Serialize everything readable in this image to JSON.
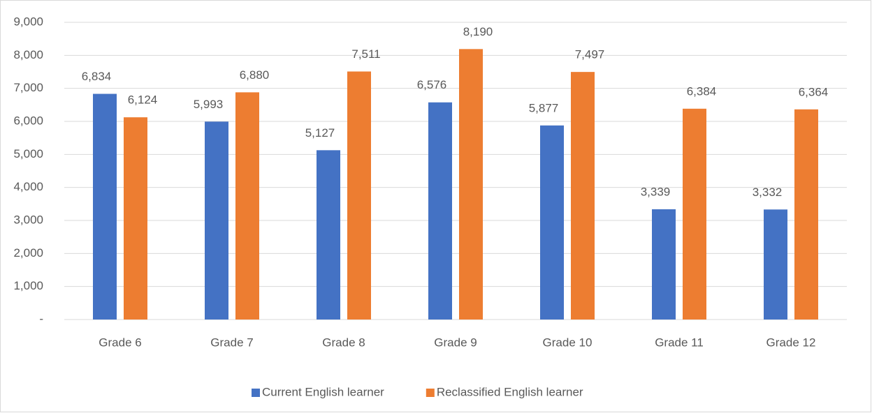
{
  "chart_data": {
    "type": "bar",
    "categories": [
      "Grade 6",
      "Grade 7",
      "Grade 8",
      "Grade 9",
      "Grade 10",
      "Grade 11",
      "Grade 12"
    ],
    "series": [
      {
        "name": "Current English learner",
        "color": "#4472c4",
        "values": [
          6834,
          5993,
          5127,
          6576,
          5877,
          3339,
          3332
        ],
        "value_labels": [
          "6,834",
          "5,993",
          "5,127",
          "6,576",
          "5,877",
          "3,339",
          "3,332"
        ]
      },
      {
        "name": "Reclassified English learner",
        "color": "#ed7d31",
        "values": [
          6124,
          6880,
          7511,
          8190,
          7497,
          6384,
          6364
        ],
        "value_labels": [
          "6,124",
          "6,880",
          "7,511",
          "8,190",
          "7,497",
          "6,384",
          "6,364"
        ]
      }
    ],
    "ylim": [
      0,
      9000
    ],
    "yticks": [
      {
        "value": 0,
        "label": "-"
      },
      {
        "value": 1000,
        "label": "1,000"
      },
      {
        "value": 2000,
        "label": "2,000"
      },
      {
        "value": 3000,
        "label": "3,000"
      },
      {
        "value": 4000,
        "label": "4,000"
      },
      {
        "value": 5000,
        "label": "5,000"
      },
      {
        "value": 6000,
        "label": "6,000"
      },
      {
        "value": 7000,
        "label": "7,000"
      },
      {
        "value": 8000,
        "label": "8,000"
      },
      {
        "value": 9000,
        "label": "9,000"
      }
    ],
    "grid": true,
    "legend": "bottom"
  }
}
